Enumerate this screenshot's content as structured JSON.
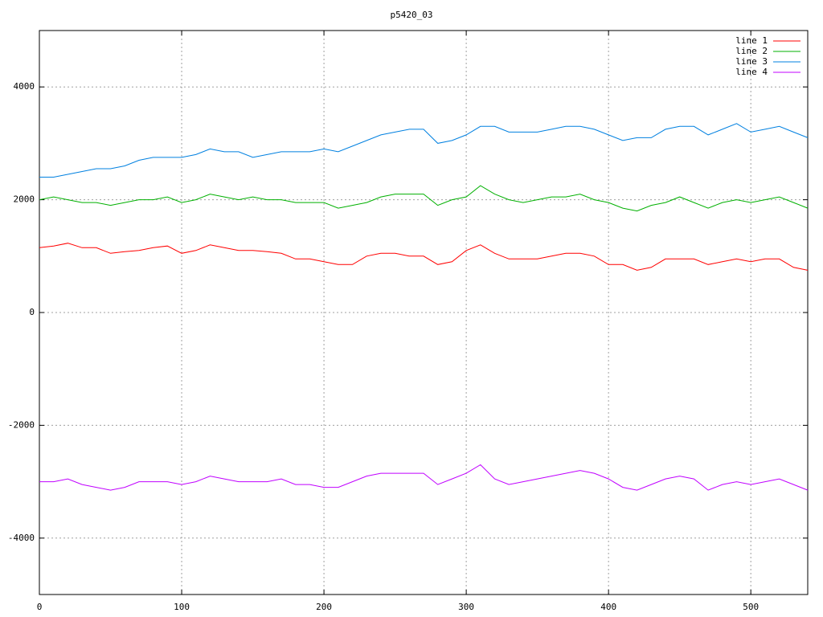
{
  "chart_data": {
    "type": "line",
    "title": "p5420_03",
    "x": [
      0,
      10,
      20,
      30,
      40,
      50,
      60,
      70,
      80,
      90,
      100,
      110,
      120,
      130,
      140,
      150,
      160,
      170,
      180,
      190,
      200,
      210,
      220,
      230,
      240,
      250,
      260,
      270,
      280,
      290,
      300,
      310,
      320,
      330,
      340,
      350,
      360,
      370,
      380,
      390,
      400,
      410,
      420,
      430,
      440,
      450,
      460,
      470,
      480,
      490,
      500,
      510,
      520,
      530,
      540
    ],
    "series": [
      {
        "name": "line 1",
        "color": "#ff0000",
        "values": [
          1150,
          1180,
          1230,
          1150,
          1150,
          1050,
          1080,
          1100,
          1150,
          1180,
          1050,
          1100,
          1200,
          1150,
          1100,
          1100,
          1080,
          1050,
          950,
          950,
          900,
          850,
          850,
          1000,
          1050,
          1050,
          1000,
          1000,
          850,
          900,
          1100,
          1200,
          1050,
          950,
          950,
          950,
          1000,
          1050,
          1050,
          1000,
          850,
          850,
          750,
          800,
          950,
          950,
          950,
          850,
          900,
          950,
          900,
          950,
          950,
          800,
          750
        ]
      },
      {
        "name": "line 2",
        "color": "#00b000",
        "values": [
          2000,
          2050,
          2000,
          1950,
          1950,
          1900,
          1950,
          2000,
          2000,
          2050,
          1950,
          2000,
          2100,
          2050,
          2000,
          2050,
          2000,
          2000,
          1950,
          1950,
          1950,
          1850,
          1900,
          1950,
          2050,
          2100,
          2100,
          2100,
          1900,
          2000,
          2050,
          2250,
          2100,
          2000,
          1950,
          2000,
          2050,
          2050,
          2100,
          2000,
          1950,
          1850,
          1800,
          1900,
          1950,
          2050,
          1950,
          1850,
          1950,
          2000,
          1950,
          2000,
          2050,
          1950,
          1850
        ]
      },
      {
        "name": "line 3",
        "color": "#0080e0",
        "values": [
          2400,
          2400,
          2450,
          2500,
          2550,
          2550,
          2600,
          2700,
          2750,
          2750,
          2750,
          2800,
          2900,
          2850,
          2850,
          2750,
          2800,
          2850,
          2850,
          2850,
          2900,
          2850,
          2950,
          3050,
          3150,
          3200,
          3250,
          3250,
          3000,
          3050,
          3150,
          3300,
          3300,
          3200,
          3200,
          3200,
          3250,
          3300,
          3300,
          3250,
          3150,
          3050,
          3100,
          3100,
          3250,
          3300,
          3300,
          3150,
          3250,
          3350,
          3200,
          3250,
          3300,
          3200,
          3100
        ]
      },
      {
        "name": "line 4",
        "color": "#c000ff",
        "values": [
          -3000,
          -3000,
          -2950,
          -3050,
          -3100,
          -3150,
          -3100,
          -3000,
          -3000,
          -3000,
          -3050,
          -3000,
          -2900,
          -2950,
          -3000,
          -3000,
          -3000,
          -2950,
          -3050,
          -3050,
          -3100,
          -3100,
          -3000,
          -2900,
          -2850,
          -2850,
          -2850,
          -2850,
          -3050,
          -2950,
          -2850,
          -2700,
          -2950,
          -3050,
          -3000,
          -2950,
          -2900,
          -2850,
          -2800,
          -2850,
          -2950,
          -3100,
          -3150,
          -3050,
          -2950,
          -2900,
          -2950,
          -3150,
          -3050,
          -3000,
          -3050,
          -3000,
          -2950,
          -3050,
          -3150
        ]
      }
    ],
    "xlim": [
      0,
      540
    ],
    "xticks": [
      0,
      100,
      200,
      300,
      400,
      500
    ],
    "ylim": [
      -5000,
      5000
    ],
    "yticks": [
      -4000,
      -2000,
      0,
      2000,
      4000
    ],
    "grid": true,
    "legend": "top-right"
  }
}
